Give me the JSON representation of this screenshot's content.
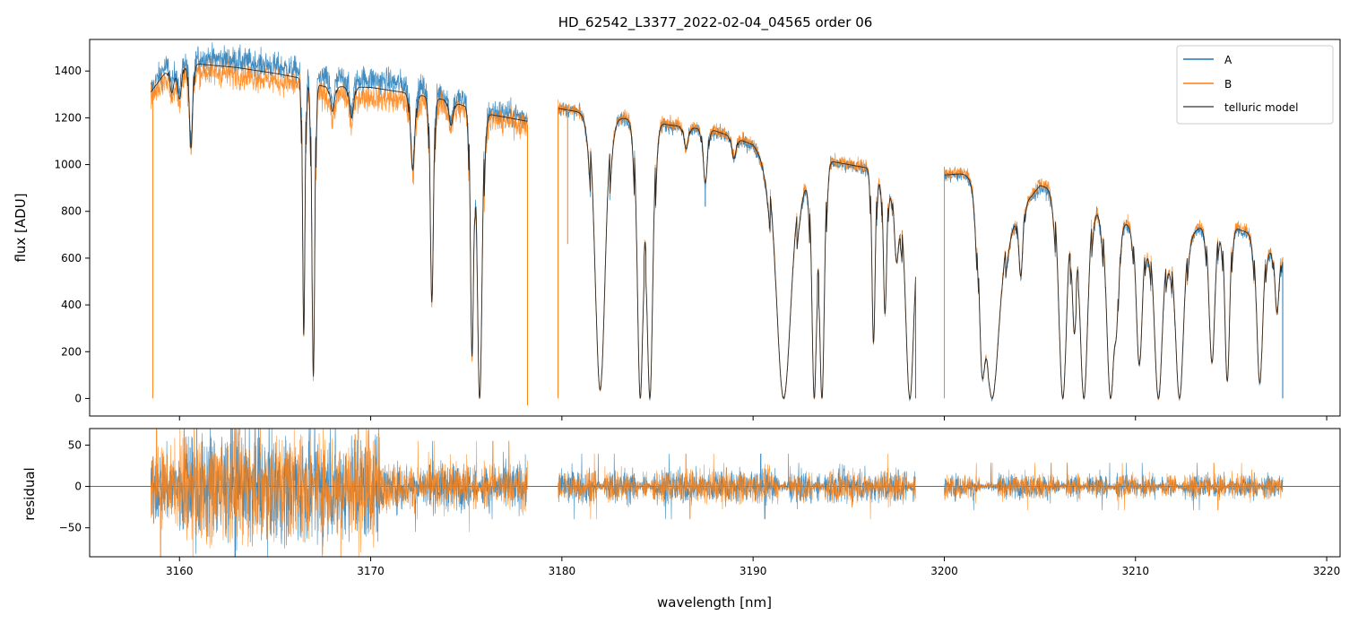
{
  "chart_data": [
    {
      "panel": "top",
      "type": "line",
      "title": "HD_62542_L3377_2022-02-04_04565  order 06",
      "xlabel": "",
      "ylabel": "flux [ADU]",
      "xlim": [
        3155.3,
        3220.7
      ],
      "ylim": [
        -75,
        1535
      ],
      "xticks": [
        3160,
        3170,
        3180,
        3190,
        3200,
        3210,
        3220
      ],
      "yticks": [
        0,
        200,
        400,
        600,
        800,
        1000,
        1200,
        1400
      ],
      "ytick_labels": [
        "0",
        "200",
        "400",
        "600",
        "800",
        "1000",
        "1200",
        "1400"
      ],
      "grid": false,
      "legend_position": "top-right",
      "legend": [
        "A",
        "B",
        "telluric model"
      ],
      "colors": {
        "A": "#1f77b4",
        "B": "#ff7f0e",
        "telluric model": "#333333"
      },
      "segments": [
        {
          "x_start": 3158.5,
          "x_end": 3178.2,
          "continuum_x": [
            3158.5,
            3159.5,
            3161.0,
            3163.0,
            3165.0,
            3166.3,
            3167.5,
            3170.0,
            3172.0,
            3174.0,
            3176.2,
            3178.2
          ],
          "continuum_A": [
            1320,
            1450,
            1455,
            1445,
            1420,
            1400,
            1370,
            1365,
            1340,
            1300,
            1230,
            1200
          ],
          "continuum_B": [
            1290,
            1390,
            1400,
            1385,
            1360,
            1340,
            1300,
            1290,
            1270,
            1250,
            1195,
            1170
          ],
          "continuum_model": [
            1310,
            1420,
            1430,
            1415,
            1390,
            1370,
            1335,
            1330,
            1305,
            1275,
            1215,
            1185
          ]
        },
        {
          "x_start": 3179.8,
          "x_end": 3198.5,
          "continuum_x": [
            3179.8,
            3182.0,
            3184.0,
            3186.0,
            3188.0,
            3190.0,
            3192.0,
            3194.0,
            3196.0,
            3198.5
          ],
          "continuum_A": [
            1240,
            1210,
            1190,
            1160,
            1140,
            1080,
            890,
            1010,
            980,
            760
          ],
          "continuum_B": [
            1245,
            1215,
            1195,
            1170,
            1150,
            1090,
            900,
            1020,
            990,
            770
          ],
          "continuum_model": [
            1240,
            1210,
            1190,
            1165,
            1145,
            1085,
            895,
            1015,
            985,
            765
          ]
        },
        {
          "x_start": 3200.0,
          "x_end": 3217.7,
          "continuum_x": [
            3200.0,
            3201.5,
            3203.0,
            3205.0,
            3207.0,
            3208.0,
            3210.0,
            3212.0,
            3214.0,
            3216.0,
            3217.7
          ],
          "continuum_A": [
            950,
            960,
            700,
            900,
            860,
            820,
            720,
            650,
            760,
            700,
            590
          ],
          "continuum_B": [
            965,
            975,
            710,
            920,
            880,
            835,
            730,
            660,
            775,
            715,
            600
          ],
          "continuum_model": [
            955,
            965,
            705,
            910,
            870,
            825,
            725,
            655,
            765,
            705,
            595
          ]
        }
      ],
      "absorption_lines": [
        {
          "x": 3159.6,
          "depth": 0.08,
          "width": 0.1
        },
        {
          "x": 3160.0,
          "depth": 0.1,
          "width": 0.1
        },
        {
          "x": 3160.6,
          "depth": 0.25,
          "width": 0.08
        },
        {
          "x": 3166.5,
          "depth": 0.8,
          "width": 0.06
        },
        {
          "x": 3167.0,
          "depth": 0.93,
          "width": 0.07
        },
        {
          "x": 3168.0,
          "depth": 0.08,
          "width": 0.1
        },
        {
          "x": 3169.0,
          "depth": 0.1,
          "width": 0.1
        },
        {
          "x": 3172.2,
          "depth": 0.25,
          "width": 0.1
        },
        {
          "x": 3173.2,
          "depth": 0.68,
          "width": 0.08
        },
        {
          "x": 3174.2,
          "depth": 0.08,
          "width": 0.1
        },
        {
          "x": 3175.3,
          "depth": 0.85,
          "width": 0.08
        },
        {
          "x": 3175.7,
          "depth": 1.0,
          "width": 0.12
        },
        {
          "x": 3182.0,
          "depth": 0.97,
          "width": 0.25
        },
        {
          "x": 3184.1,
          "depth": 1.0,
          "width": 0.15
        },
        {
          "x": 3184.6,
          "depth": 1.0,
          "width": 0.15
        },
        {
          "x": 3186.5,
          "depth": 0.08,
          "width": 0.1
        },
        {
          "x": 3187.5,
          "depth": 0.2,
          "width": 0.1
        },
        {
          "x": 3189.0,
          "depth": 0.08,
          "width": 0.1
        },
        {
          "x": 3191.6,
          "depth": 1.0,
          "width": 0.35
        },
        {
          "x": 3193.2,
          "depth": 1.0,
          "width": 0.12
        },
        {
          "x": 3193.6,
          "depth": 1.0,
          "width": 0.12
        },
        {
          "x": 3196.3,
          "depth": 0.75,
          "width": 0.08
        },
        {
          "x": 3196.9,
          "depth": 0.6,
          "width": 0.08
        },
        {
          "x": 3197.5,
          "depth": 0.3,
          "width": 0.1
        },
        {
          "x": 3198.2,
          "depth": 1.0,
          "width": 0.2
        },
        {
          "x": 3202.0,
          "depth": 0.85,
          "width": 0.15
        },
        {
          "x": 3202.5,
          "depth": 1.0,
          "width": 0.35
        },
        {
          "x": 3204.0,
          "depth": 0.35,
          "width": 0.1
        },
        {
          "x": 3206.2,
          "depth": 1.0,
          "width": 0.2
        },
        {
          "x": 3206.8,
          "depth": 0.6,
          "width": 0.1
        },
        {
          "x": 3207.3,
          "depth": 1.0,
          "width": 0.2
        },
        {
          "x": 3208.7,
          "depth": 1.0,
          "width": 0.2
        },
        {
          "x": 3209.0,
          "depth": 0.5,
          "width": 0.1
        },
        {
          "x": 3210.2,
          "depth": 0.8,
          "width": 0.15
        },
        {
          "x": 3211.2,
          "depth": 1.0,
          "width": 0.2
        },
        {
          "x": 3212.3,
          "depth": 1.0,
          "width": 0.2
        },
        {
          "x": 3214.0,
          "depth": 0.8,
          "width": 0.15
        },
        {
          "x": 3214.8,
          "depth": 0.9,
          "width": 0.12
        },
        {
          "x": 3216.5,
          "depth": 0.9,
          "width": 0.15
        },
        {
          "x": 3217.4,
          "depth": 0.4,
          "width": 0.1
        }
      ],
      "spikes": [
        {
          "x": 3158.6,
          "series": "B",
          "value": 0
        },
        {
          "x": 3178.2,
          "series": "B",
          "value": -30
        },
        {
          "x": 3179.8,
          "series": "B",
          "value": 0
        },
        {
          "x": 3180.3,
          "series": "B",
          "value": 660
        },
        {
          "x": 3187.5,
          "series": "A",
          "value": 820
        },
        {
          "x": 3198.5,
          "series": "A",
          "value": 0
        },
        {
          "x": 3200.0,
          "series": "B",
          "value": 0
        },
        {
          "x": 3217.7,
          "series": "A",
          "value": 0
        }
      ]
    },
    {
      "panel": "bottom",
      "type": "line",
      "title": "",
      "xlabel": "wavelength [nm]",
      "ylabel": "residual",
      "xlim": [
        3155.3,
        3220.7
      ],
      "ylim": [
        -85,
        70
      ],
      "xticks": [
        3160,
        3170,
        3180,
        3190,
        3200,
        3210,
        3220
      ],
      "xtick_labels": [
        "3160",
        "3170",
        "3180",
        "3190",
        "3200",
        "3210",
        "3220"
      ],
      "yticks": [
        -50,
        0,
        50
      ],
      "ytick_labels": [
        "−50",
        "0",
        "50"
      ],
      "zero_line": 0,
      "grid": false,
      "noise_scale": [
        {
          "x": [
            3158.5,
            3160.0
          ],
          "amp": 40
        },
        {
          "x": [
            3160.0,
            3170.5
          ],
          "amp": 60
        },
        {
          "x": [
            3170.5,
            3178.2
          ],
          "amp": 25
        },
        {
          "x": [
            3179.8,
            3198.5
          ],
          "amp": 18
        },
        {
          "x": [
            3200.0,
            3217.7
          ],
          "amp": 13
        }
      ]
    }
  ]
}
